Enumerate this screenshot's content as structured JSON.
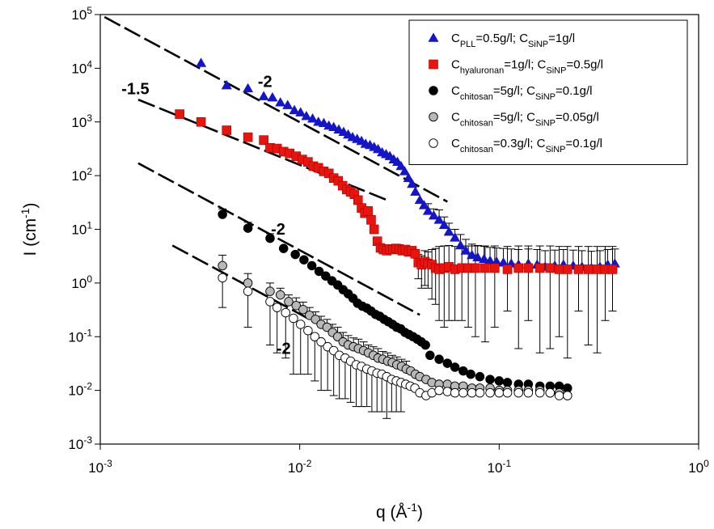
{
  "chart_data": {
    "type": "scatter",
    "xlabel": {
      "base": "q (Å",
      "sup": "-1",
      "tail": ")"
    },
    "ylabel": {
      "base": "I (cm",
      "sup": "-1",
      "tail": ")"
    },
    "x_scale": "log",
    "y_scale": "log",
    "xlim": [
      0.001,
      1
    ],
    "ylim": [
      0.001,
      100000
    ],
    "x_ticks": [
      {
        "value": 0.001,
        "base": "10",
        "exp": "-3"
      },
      {
        "value": 0.01,
        "base": "10",
        "exp": "-2"
      },
      {
        "value": 0.1,
        "base": "10",
        "exp": "-1"
      },
      {
        "value": 1,
        "base": "10",
        "exp": "0"
      }
    ],
    "y_ticks": [
      {
        "value": 0.001,
        "base": "10",
        "exp": "-3"
      },
      {
        "value": 0.01,
        "base": "10",
        "exp": "-2"
      },
      {
        "value": 0.1,
        "base": "10",
        "exp": "-1"
      },
      {
        "value": 1,
        "base": "10",
        "exp": "0"
      },
      {
        "value": 10,
        "base": "10",
        "exp": "1"
      },
      {
        "value": 100,
        "base": "10",
        "exp": "2"
      },
      {
        "value": 1000,
        "base": "10",
        "exp": "3"
      },
      {
        "value": 10000,
        "base": "10",
        "exp": "4"
      },
      {
        "value": 100000,
        "base": "10",
        "exp": "5"
      }
    ],
    "legend_position": "top-right",
    "series": [
      {
        "legend": [
          {
            "t": "C"
          },
          {
            "t": "PLL",
            "sub": true
          },
          {
            "t": "=0.5g/l; C"
          },
          {
            "t": "SiNP",
            "sub": true
          },
          {
            "t": "=1g/l"
          }
        ],
        "marker": "triangle",
        "color": "#1515c8",
        "x": [
          0.0032,
          0.0043,
          0.0055,
          0.0066,
          0.0073,
          0.008,
          0.0087,
          0.0094,
          0.0101,
          0.0108,
          0.0116,
          0.0124,
          0.0132,
          0.014,
          0.0148,
          0.0157,
          0.0166,
          0.0175,
          0.0184,
          0.0194,
          0.0204,
          0.0214,
          0.0225,
          0.0236,
          0.0247,
          0.0259,
          0.0271,
          0.0283,
          0.0296,
          0.0309,
          0.0322,
          0.0336,
          0.0351,
          0.0366,
          0.038,
          0.04,
          0.042,
          0.044,
          0.047,
          0.05,
          0.053,
          0.056,
          0.06,
          0.064,
          0.068,
          0.073,
          0.078,
          0.084,
          0.09,
          0.097,
          0.105,
          0.115,
          0.125,
          0.14,
          0.155,
          0.17,
          0.19,
          0.21,
          0.235,
          0.26,
          0.29,
          0.32,
          0.35,
          0.38
        ],
        "y": [
          12500,
          4800,
          4200,
          3000,
          2850,
          2300,
          2050,
          1650,
          1500,
          1280,
          1150,
          1000,
          950,
          850,
          800,
          720,
          650,
          580,
          520,
          480,
          440,
          390,
          370,
          340,
          310,
          270,
          250,
          230,
          200,
          180,
          150,
          120,
          90,
          70,
          50,
          35,
          28,
          22,
          18,
          15,
          12,
          9,
          7,
          5,
          4,
          3.3,
          3,
          2.8,
          2.6,
          2.5,
          2.4,
          2.3,
          2.2,
          2.3,
          2.2,
          2,
          2.1,
          2.2,
          2.1,
          2,
          1.9,
          2,
          2.2,
          2.3
        ],
        "err_up": [
          0,
          0,
          0,
          0,
          0,
          0,
          0,
          0,
          0,
          0,
          0,
          0,
          0,
          0,
          0,
          0,
          0,
          0,
          0,
          0,
          0,
          0,
          0,
          0,
          0,
          0,
          0,
          0,
          0,
          0,
          0,
          0,
          0,
          0,
          0,
          0,
          0,
          8,
          6,
          8,
          5,
          4,
          3,
          3,
          2.5,
          2,
          2,
          2,
          2,
          2,
          2,
          2,
          2,
          2,
          2,
          2,
          2,
          2,
          2,
          2,
          2,
          2,
          2,
          2
        ]
      },
      {
        "legend": [
          {
            "t": "C"
          },
          {
            "t": "hyaluronan",
            "sub": true
          },
          {
            "t": "=1g/l; C"
          },
          {
            "t": "SiNP",
            "sub": true
          },
          {
            "t": "=0.5g/l"
          }
        ],
        "marker": "square",
        "color": "#e8140e",
        "x": [
          0.0025,
          0.0032,
          0.0043,
          0.0055,
          0.0066,
          0.0071,
          0.0077,
          0.0083,
          0.0089,
          0.0096,
          0.0103,
          0.011,
          0.0117,
          0.0124,
          0.0132,
          0.014,
          0.0148,
          0.0156,
          0.0164,
          0.0172,
          0.018,
          0.0188,
          0.0196,
          0.0204,
          0.0212,
          0.022,
          0.0228,
          0.0236,
          0.0245,
          0.0254,
          0.0263,
          0.0273,
          0.0283,
          0.0293,
          0.0304,
          0.0315,
          0.0327,
          0.0339,
          0.0352,
          0.0365,
          0.0379,
          0.0393,
          0.0408,
          0.0424,
          0.044,
          0.046,
          0.048,
          0.05,
          0.053,
          0.056,
          0.06,
          0.065,
          0.07,
          0.076,
          0.085,
          0.095,
          0.11,
          0.125,
          0.14,
          0.16,
          0.18,
          0.2,
          0.22,
          0.25,
          0.28,
          0.31,
          0.34,
          0.37
        ],
        "y": [
          1400,
          1000,
          700,
          520,
          460,
          330,
          320,
          280,
          260,
          230,
          200,
          180,
          150,
          140,
          120,
          110,
          90,
          80,
          65,
          55,
          50,
          45,
          35,
          25,
          20,
          22,
          15,
          10,
          6,
          4.5,
          4.2,
          4,
          4.3,
          4.2,
          4.4,
          4.3,
          4,
          4.2,
          3.8,
          4,
          3.5,
          2.4,
          2.2,
          2.5,
          2.3,
          2.2,
          1.9,
          1.8,
          1.9,
          2,
          1.8,
          1.9,
          1.9,
          1.9,
          1.9,
          1.9,
          1.8,
          1.9,
          1.9,
          1.9,
          1.9,
          1.8,
          1.8,
          1.8,
          1.8,
          1.8,
          1.8,
          1.8
        ],
        "err_up": [
          0,
          0,
          0,
          0,
          0,
          0,
          0,
          0,
          0,
          0,
          0,
          0,
          0,
          0,
          0,
          0,
          0,
          0,
          0,
          0,
          0,
          0,
          0,
          0,
          0,
          0,
          0,
          0,
          0,
          0,
          0,
          0,
          0,
          0,
          0,
          0,
          0,
          0,
          0,
          0,
          0,
          1,
          1,
          1.5,
          1.5,
          2,
          2.5,
          3,
          3,
          3,
          3,
          3,
          3,
          3,
          3,
          3,
          3,
          3,
          3,
          3,
          3,
          3,
          3,
          3,
          3,
          3,
          3,
          3
        ],
        "err_down": [
          0,
          0,
          0,
          0,
          0,
          0,
          0,
          0,
          0,
          0,
          0,
          0,
          0,
          0,
          0,
          0,
          0,
          0,
          0,
          0,
          0,
          0,
          0,
          0,
          0,
          0,
          0,
          0,
          0,
          0,
          0,
          0,
          0,
          0,
          0,
          0,
          0,
          0,
          0,
          0,
          0,
          1.2,
          1.4,
          1.6,
          1.5,
          1.7,
          1.5,
          1.6,
          1.75,
          1.8,
          1.6,
          1.7,
          1.75,
          1.8,
          1.82,
          1.75,
          1.5,
          1.84,
          1.7,
          1.85,
          1.84,
          1.7,
          1.76,
          1.5,
          1.73,
          1.75,
          1.6,
          1.5
        ]
      },
      {
        "legend": [
          {
            "t": "C"
          },
          {
            "t": "chitosan",
            "sub": true
          },
          {
            "t": "=5g/l; C"
          },
          {
            "t": "SiNP",
            "sub": true
          },
          {
            "t": "=0.1g/l"
          }
        ],
        "marker": "circle",
        "color": "#000000",
        "x": [
          0.0041,
          0.0055,
          0.0071,
          0.0083,
          0.0095,
          0.0105,
          0.0115,
          0.0125,
          0.0135,
          0.0145,
          0.0155,
          0.0165,
          0.0175,
          0.0185,
          0.0195,
          0.0206,
          0.0217,
          0.0228,
          0.024,
          0.0252,
          0.0265,
          0.0278,
          0.0292,
          0.0306,
          0.0321,
          0.0337,
          0.0353,
          0.037,
          0.0388,
          0.0407,
          0.0427,
          0.045,
          0.05,
          0.055,
          0.06,
          0.066,
          0.072,
          0.08,
          0.09,
          0.1,
          0.11,
          0.125,
          0.14,
          0.16,
          0.18,
          0.2,
          0.22
        ],
        "y": [
          19,
          10.5,
          6.8,
          4.4,
          3.4,
          2.7,
          2.1,
          1.65,
          1.35,
          1.1,
          0.92,
          0.75,
          0.63,
          0.52,
          0.42,
          0.37,
          0.34,
          0.3,
          0.26,
          0.24,
          0.21,
          0.19,
          0.17,
          0.15,
          0.14,
          0.12,
          0.11,
          0.1,
          0.09,
          0.08,
          0.07,
          0.045,
          0.038,
          0.032,
          0.027,
          0.023,
          0.02,
          0.018,
          0.016,
          0.015,
          0.014,
          0.013,
          0.013,
          0.012,
          0.012,
          0.012,
          0.011
        ],
        "err_up": [
          5,
          3,
          1.5,
          0,
          0,
          0,
          0,
          0,
          0,
          0,
          0,
          0,
          0,
          0,
          0,
          0,
          0,
          0,
          0,
          0,
          0,
          0,
          0,
          0,
          0,
          0,
          0,
          0,
          0,
          0,
          0,
          0,
          0,
          0,
          0,
          0,
          0,
          0,
          0,
          0,
          0,
          0,
          0,
          0,
          0,
          0,
          0
        ]
      },
      {
        "legend": [
          {
            "t": "C"
          },
          {
            "t": "chitosan",
            "sub": true
          },
          {
            "t": "=5g/l; C"
          },
          {
            "t": "SiNP",
            "sub": true
          },
          {
            "t": "=0.05g/l"
          }
        ],
        "marker": "circle",
        "color": "#b8b8b8",
        "x": [
          0.0041,
          0.0055,
          0.0071,
          0.008,
          0.0088,
          0.0096,
          0.0104,
          0.0112,
          0.012,
          0.0128,
          0.0137,
          0.0146,
          0.0155,
          0.0165,
          0.0175,
          0.0186,
          0.0197,
          0.0209,
          0.0221,
          0.0234,
          0.0247,
          0.0261,
          0.0276,
          0.0291,
          0.0307,
          0.0324,
          0.0342,
          0.036,
          0.038,
          0.04,
          0.043,
          0.046,
          0.05,
          0.055,
          0.06,
          0.066,
          0.073,
          0.08,
          0.09,
          0.1,
          0.11,
          0.125,
          0.14,
          0.16,
          0.18,
          0.2,
          0.22
        ],
        "y": [
          2.1,
          1.0,
          0.7,
          0.6,
          0.45,
          0.38,
          0.32,
          0.25,
          0.21,
          0.17,
          0.15,
          0.12,
          0.1,
          0.08,
          0.07,
          0.065,
          0.06,
          0.055,
          0.05,
          0.045,
          0.04,
          0.038,
          0.035,
          0.033,
          0.03,
          0.028,
          0.025,
          0.023,
          0.02,
          0.018,
          0.016,
          0.014,
          0.013,
          0.013,
          0.012,
          0.012,
          0.011,
          0.011,
          0.011,
          0.01,
          0.01,
          0.01,
          0.01,
          0.01,
          0.009,
          0.009,
          0.008
        ],
        "err_up": [
          1.2,
          0.5,
          0.3,
          0.2,
          0.15,
          0.15,
          0.12,
          0.1,
          0.08,
          0.07,
          0.06,
          0.05,
          0.05,
          0.04,
          0.035,
          0.03,
          0.03,
          0.025,
          0.02,
          0.02,
          0.02,
          0.015,
          0.015,
          0.012,
          0.012,
          0.01,
          0.01,
          0,
          0,
          0,
          0,
          0,
          0,
          0,
          0,
          0,
          0,
          0,
          0,
          0,
          0,
          0,
          0,
          0,
          0,
          0,
          0
        ]
      },
      {
        "legend": [
          {
            "t": "C"
          },
          {
            "t": "chitosan",
            "sub": true
          },
          {
            "t": "=0.3g/l; C"
          },
          {
            "t": "SiNP",
            "sub": true
          },
          {
            "t": "=0.1g/l"
          }
        ],
        "marker": "circle",
        "color": "#ffffff",
        "x": [
          0.0041,
          0.0055,
          0.0071,
          0.0077,
          0.0085,
          0.0093,
          0.0101,
          0.011,
          0.0119,
          0.0128,
          0.0138,
          0.0148,
          0.0158,
          0.0169,
          0.018,
          0.0192,
          0.0204,
          0.0217,
          0.023,
          0.0244,
          0.0258,
          0.0273,
          0.0289,
          0.0305,
          0.0322,
          0.034,
          0.0358,
          0.0378,
          0.04,
          0.043,
          0.046,
          0.05,
          0.055,
          0.06,
          0.066,
          0.073,
          0.08,
          0.09,
          0.1,
          0.11,
          0.125,
          0.14,
          0.16,
          0.18,
          0.2,
          0.22
        ],
        "y": [
          1.25,
          0.7,
          0.45,
          0.35,
          0.28,
          0.22,
          0.17,
          0.13,
          0.1,
          0.08,
          0.065,
          0.055,
          0.045,
          0.04,
          0.035,
          0.03,
          0.028,
          0.025,
          0.023,
          0.021,
          0.02,
          0.018,
          0.016,
          0.015,
          0.014,
          0.013,
          0.012,
          0.011,
          0.009,
          0.008,
          0.009,
          0.01,
          0.0095,
          0.009,
          0.009,
          0.009,
          0.009,
          0.009,
          0.009,
          0.009,
          0.009,
          0.009,
          0.009,
          0.009,
          0.008,
          0.008
        ],
        "err_down": [
          0.9,
          0.55,
          0.38,
          0.3,
          0.24,
          0.2,
          0.15,
          0.11,
          0.085,
          0.07,
          0.055,
          0.047,
          0.038,
          0.033,
          0.029,
          0.025,
          0.023,
          0.02,
          0.019,
          0.017,
          0.016,
          0.015,
          0.012,
          0.011,
          0.01,
          0,
          0,
          0,
          0,
          0,
          0,
          0,
          0,
          0,
          0,
          0,
          0,
          0,
          0,
          0,
          0,
          0,
          0,
          0,
          0,
          0
        ]
      }
    ],
    "fit_lines": [
      {
        "x0": 0.00105,
        "y0": 90000,
        "x1": 0.055,
        "y1": 32.7
      },
      {
        "x0": 0.00155,
        "y0": 2600,
        "x1": 0.028,
        "y1": 33.9
      },
      {
        "x0": 0.00155,
        "y0": 170,
        "x1": 0.04,
        "y1": 0.255
      },
      {
        "x0": 0.0023,
        "y0": 5,
        "x1": 0.013,
        "y1": 0.157
      }
    ],
    "annotations": [
      {
        "text": "-2",
        "x": 0.0067,
        "y": 4500
      },
      {
        "text": "-1.5",
        "x": 0.0015,
        "y": 3300
      },
      {
        "text": "-2",
        "x": 0.0078,
        "y": 8
      },
      {
        "text": "-2",
        "x": 0.0083,
        "y": 0.048
      }
    ]
  }
}
